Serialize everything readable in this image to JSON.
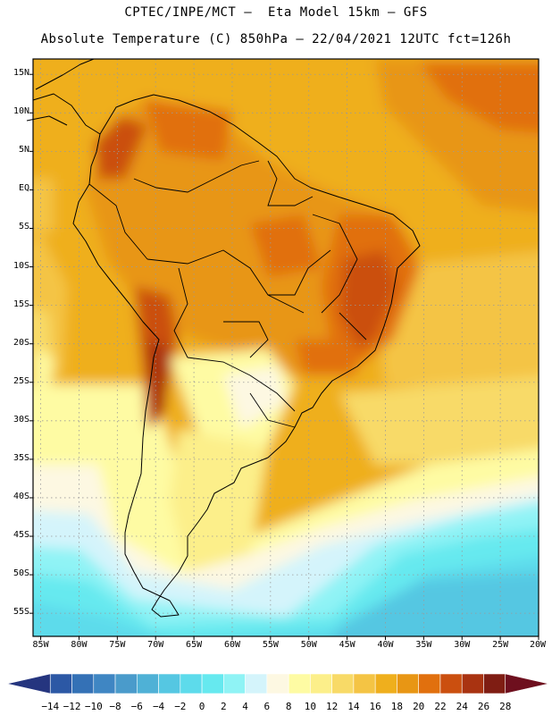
{
  "header": {
    "line1": "CPTEC/INPE/MCT –  Eta Model 15km – GFS",
    "line2": "Absolute Temperature (C) 850hPa – 22/04/2021 12UTC fct=126h"
  },
  "map": {
    "lat_labels": [
      "15N",
      "10N",
      "5N",
      "EQ",
      "5S",
      "10S",
      "15S",
      "20S",
      "25S",
      "30S",
      "35S",
      "40S",
      "45S",
      "50S",
      "55S"
    ],
    "lon_labels": [
      "85W",
      "80W",
      "75W",
      "70W",
      "65W",
      "60W",
      "55W",
      "50W",
      "45W",
      "40W",
      "35W",
      "30W",
      "25W",
      "20W"
    ],
    "lat_values": [
      15,
      10,
      5,
      0,
      -5,
      -10,
      -15,
      -20,
      -25,
      -30,
      -35,
      -40,
      -45,
      -50,
      -55
    ],
    "lon_values": [
      -85,
      -80,
      -75,
      -70,
      -65,
      -60,
      -55,
      -50,
      -45,
      -40,
      -35,
      -30,
      -25,
      -20
    ],
    "lat_range": [
      -58,
      17
    ],
    "lon_range": [
      -86,
      -20
    ],
    "grid": "dotted",
    "field": "850hPa absolute temperature",
    "colors": {
      "land_outline": "#000000",
      "grid": "#9a9a9a"
    }
  },
  "colorbar": {
    "labels": [
      "-14",
      "-12",
      "-10",
      "-8",
      "-6",
      "-4",
      "-2",
      "0",
      "2",
      "4",
      "6",
      "8",
      "10",
      "12",
      "14",
      "16",
      "18",
      "20",
      "22",
      "24",
      "26",
      "28"
    ],
    "colors": [
      "#25357f",
      "#2c58a5",
      "#3471b6",
      "#3f86c3",
      "#4a9bcb",
      "#4fb1d6",
      "#55c7e2",
      "#5ddbeb",
      "#66e9ef",
      "#8ff3f5",
      "#d4f4fb",
      "#fdf8e2",
      "#fefba3",
      "#fcef8a",
      "#f8da67",
      "#f4c444",
      "#efaf1d",
      "#e89614",
      "#e1700e",
      "#cb4f0f",
      "#a93311",
      "#7f1d13",
      "#6e0f1e"
    ]
  }
}
